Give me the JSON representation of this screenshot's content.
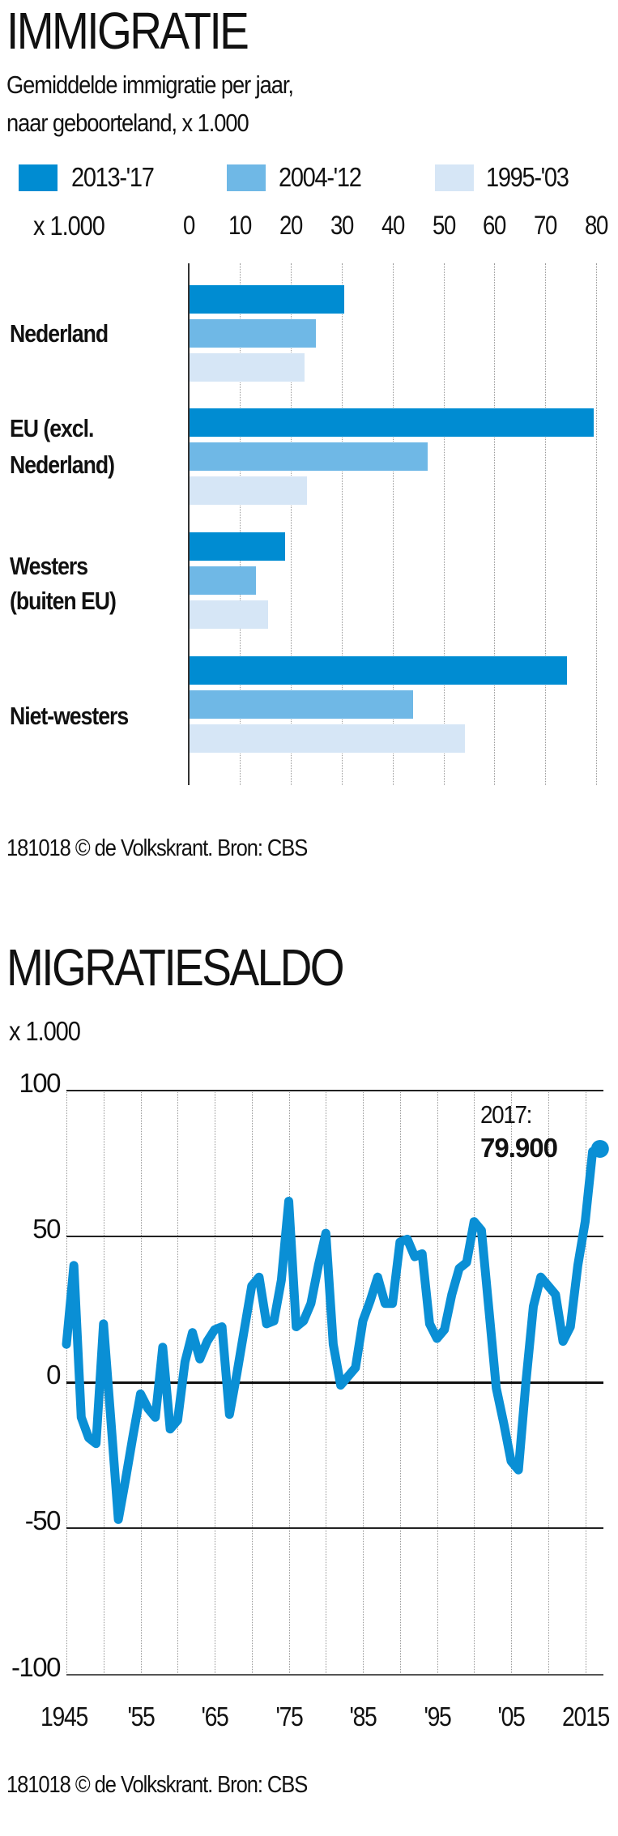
{
  "colors": {
    "series_2013_17": "#008CD2",
    "series_2004_12": "#6FB8E6",
    "series_1995_03": "#D6E6F6",
    "line": "#0A8FD5",
    "axis": "#222222",
    "grid": "#999999"
  },
  "immigratie": {
    "title": "IMMIGRATIE",
    "subtitle_line1": "Gemiddelde immigratie per jaar,",
    "subtitle_line2": "naar geboorteland, x 1.000",
    "legend": [
      {
        "label": "2013-'17",
        "color": "#008CD2"
      },
      {
        "label": "2004-'12",
        "color": "#6FB8E6"
      },
      {
        "label": "1995-'03",
        "color": "#D6E6F6"
      }
    ],
    "axis_unit": "x 1.000",
    "ticks": [
      "0",
      "10",
      "20",
      "30",
      "40",
      "50",
      "60",
      "70",
      "80"
    ],
    "categories": [
      {
        "label_line1": "Nederland",
        "label_line2": ""
      },
      {
        "label_line1": "EU (excl.",
        "label_line2": "Nederland)"
      },
      {
        "label_line1": "Westers",
        "label_line2": "(buiten EU)"
      },
      {
        "label_line1": "Niet-westers",
        "label_line2": ""
      }
    ],
    "footer": "181018  © de Volkskrant. Bron: CBS"
  },
  "migratiesaldo": {
    "title": "MIGRATIESALDO",
    "unit": "x 1.000",
    "y_ticks": [
      "100",
      "50",
      "0",
      "-50",
      "-100"
    ],
    "x_ticks": [
      "1945",
      "'55",
      "'65",
      "'75",
      "'85",
      "'95",
      "'05",
      "2015"
    ],
    "annotation_year": "2017:",
    "annotation_value": "79.900",
    "footer": "181018  © de Volkskrant. Bron: CBS"
  },
  "chart_data": [
    {
      "type": "bar",
      "orientation": "horizontal",
      "title": "IMMIGRATIE",
      "subtitle": "Gemiddelde immigratie per jaar, naar geboorteland, x 1.000",
      "xlabel": "x 1.000",
      "ylabel": "",
      "xlim": [
        0,
        80
      ],
      "grid": true,
      "legend_position": "top",
      "categories": [
        "Nederland",
        "EU (excl. Nederland)",
        "Westers (buiten EU)",
        "Niet-westers"
      ],
      "series": [
        {
          "name": "2013-'17",
          "values": [
            30.4,
            79.3,
            18.8,
            74.1
          ]
        },
        {
          "name": "2004-'12",
          "values": [
            24.8,
            46.8,
            13.0,
            43.9
          ]
        },
        {
          "name": "1995-'03",
          "values": [
            22.6,
            23.1,
            15.5,
            54.0
          ]
        }
      ],
      "footer": "181018 © de Volkskrant. Bron: CBS"
    },
    {
      "type": "line",
      "title": "MIGRATIESALDO",
      "ylabel": "x 1.000",
      "xlabel": "",
      "ylim": [
        -100,
        100
      ],
      "xlim": [
        1945,
        2017
      ],
      "y_ticks": [
        100,
        50,
        0,
        -50,
        -100
      ],
      "x_tick_labels": [
        "1945",
        "'55",
        "'65",
        "'75",
        "'85",
        "'95",
        "'05",
        "2015"
      ],
      "grid": true,
      "annotations": [
        {
          "x": 2017,
          "y": 79.9,
          "text": "2017: 79.900"
        }
      ],
      "x": [
        1945,
        1946,
        1947,
        1948,
        1949,
        1950,
        1951,
        1952,
        1953,
        1954,
        1955,
        1956,
        1957,
        1958,
        1959,
        1960,
        1961,
        1962,
        1963,
        1964,
        1965,
        1966,
        1967,
        1968,
        1969,
        1970,
        1971,
        1972,
        1973,
        1974,
        1975,
        1976,
        1977,
        1978,
        1979,
        1980,
        1981,
        1982,
        1983,
        1984,
        1985,
        1986,
        1987,
        1988,
        1989,
        1990,
        1991,
        1992,
        1993,
        1994,
        1995,
        1996,
        1997,
        1998,
        1999,
        2000,
        2001,
        2002,
        2003,
        2004,
        2005,
        2006,
        2007,
        2008,
        2009,
        2010,
        2011,
        2012,
        2013,
        2014,
        2015,
        2016,
        2017
      ],
      "series": [
        {
          "name": "Migratiesaldo",
          "values": [
            13,
            40,
            -12,
            -19,
            -21,
            20,
            -13,
            -47,
            -33,
            -18,
            -4,
            -9,
            -12,
            12,
            -16,
            -13,
            7,
            17,
            8,
            14,
            18,
            19,
            -11,
            3,
            18,
            33,
            36,
            20,
            21,
            35,
            62,
            19,
            21,
            27,
            40,
            51,
            13,
            -1,
            2,
            5,
            21,
            28,
            36,
            27,
            27,
            48,
            49,
            43,
            44,
            20,
            15,
            18,
            30,
            39,
            41,
            55,
            52,
            25,
            -2,
            -14,
            -27,
            -30,
            0,
            26,
            36,
            33,
            30,
            14,
            19,
            40,
            55,
            79,
            79.9
          ]
        }
      ],
      "footer": "181018 © de Volkskrant. Bron: CBS"
    }
  ]
}
